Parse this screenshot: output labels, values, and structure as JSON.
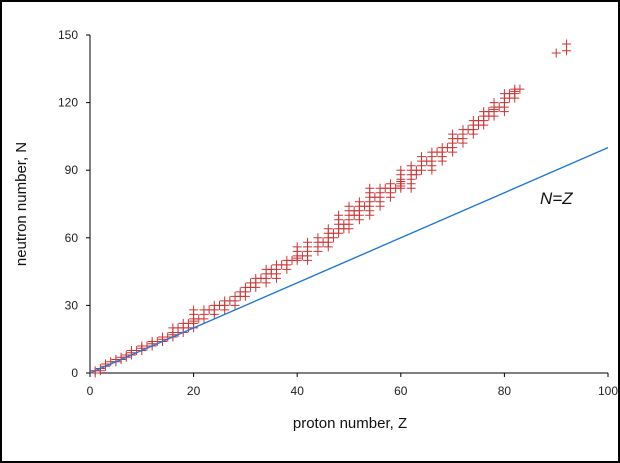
{
  "chart_data": {
    "type": "scatter",
    "xlabel": "proton number, Z",
    "ylabel": "neutron number, N",
    "xlim": [
      0,
      100
    ],
    "ylim": [
      0,
      150
    ],
    "xticks": [
      "0",
      "20",
      "40",
      "60",
      "80",
      "100"
    ],
    "yticks": [
      "0",
      "30",
      "60",
      "90",
      "120",
      "150"
    ],
    "grid": false,
    "annotation": "N=Z",
    "series": [
      {
        "kind": "marker-plus",
        "color": "#cc3333",
        "points": [
          [
            1,
            0
          ],
          [
            1,
            1
          ],
          [
            2,
            1
          ],
          [
            2,
            2
          ],
          [
            3,
            3
          ],
          [
            3,
            4
          ],
          [
            4,
            5
          ],
          [
            5,
            5
          ],
          [
            5,
            6
          ],
          [
            6,
            6
          ],
          [
            6,
            7
          ],
          [
            7,
            7
          ],
          [
            7,
            8
          ],
          [
            8,
            8
          ],
          [
            8,
            9
          ],
          [
            8,
            10
          ],
          [
            9,
            10
          ],
          [
            10,
            10
          ],
          [
            10,
            11
          ],
          [
            10,
            12
          ],
          [
            11,
            12
          ],
          [
            12,
            12
          ],
          [
            12,
            13
          ],
          [
            12,
            14
          ],
          [
            13,
            14
          ],
          [
            14,
            14
          ],
          [
            14,
            15
          ],
          [
            14,
            16
          ],
          [
            15,
            16
          ],
          [
            16,
            16
          ],
          [
            16,
            17
          ],
          [
            16,
            18
          ],
          [
            16,
            20
          ],
          [
            17,
            18
          ],
          [
            17,
            20
          ],
          [
            18,
            18
          ],
          [
            18,
            20
          ],
          [
            18,
            22
          ],
          [
            19,
            20
          ],
          [
            19,
            22
          ],
          [
            20,
            20
          ],
          [
            20,
            22
          ],
          [
            20,
            23
          ],
          [
            20,
            24
          ],
          [
            20,
            26
          ],
          [
            20,
            28
          ],
          [
            21,
            24
          ],
          [
            22,
            24
          ],
          [
            22,
            26
          ],
          [
            22,
            28
          ],
          [
            23,
            28
          ],
          [
            24,
            26
          ],
          [
            24,
            28
          ],
          [
            24,
            30
          ],
          [
            25,
            30
          ],
          [
            26,
            28
          ],
          [
            26,
            30
          ],
          [
            26,
            32
          ],
          [
            27,
            32
          ],
          [
            28,
            30
          ],
          [
            28,
            32
          ],
          [
            28,
            34
          ],
          [
            29,
            34
          ],
          [
            29,
            36
          ],
          [
            30,
            34
          ],
          [
            30,
            36
          ],
          [
            30,
            38
          ],
          [
            31,
            38
          ],
          [
            31,
            40
          ],
          [
            32,
            38
          ],
          [
            32,
            40
          ],
          [
            32,
            42
          ],
          [
            33,
            42
          ],
          [
            34,
            40
          ],
          [
            34,
            42
          ],
          [
            34,
            44
          ],
          [
            34,
            46
          ],
          [
            35,
            44
          ],
          [
            35,
            46
          ],
          [
            36,
            42
          ],
          [
            36,
            44
          ],
          [
            36,
            46
          ],
          [
            36,
            48
          ],
          [
            37,
            48
          ],
          [
            38,
            46
          ],
          [
            38,
            48
          ],
          [
            38,
            50
          ],
          [
            39,
            50
          ],
          [
            40,
            50
          ],
          [
            40,
            51
          ],
          [
            40,
            52
          ],
          [
            40,
            54
          ],
          [
            40,
            56
          ],
          [
            41,
            52
          ],
          [
            42,
            50
          ],
          [
            42,
            52
          ],
          [
            42,
            54
          ],
          [
            42,
            56
          ],
          [
            42,
            58
          ],
          [
            44,
            54
          ],
          [
            44,
            56
          ],
          [
            44,
            58
          ],
          [
            44,
            60
          ],
          [
            45,
            58
          ],
          [
            46,
            56
          ],
          [
            46,
            58
          ],
          [
            46,
            60
          ],
          [
            46,
            62
          ],
          [
            46,
            64
          ],
          [
            47,
            60
          ],
          [
            47,
            62
          ],
          [
            48,
            62
          ],
          [
            48,
            64
          ],
          [
            48,
            66
          ],
          [
            48,
            68
          ],
          [
            48,
            70
          ],
          [
            49,
            64
          ],
          [
            49,
            66
          ],
          [
            50,
            64
          ],
          [
            50,
            66
          ],
          [
            50,
            68
          ],
          [
            50,
            70
          ],
          [
            50,
            72
          ],
          [
            50,
            74
          ],
          [
            51,
            70
          ],
          [
            51,
            72
          ],
          [
            52,
            68
          ],
          [
            52,
            70
          ],
          [
            52,
            72
          ],
          [
            52,
            74
          ],
          [
            52,
            76
          ],
          [
            53,
            74
          ],
          [
            54,
            70
          ],
          [
            54,
            72
          ],
          [
            54,
            74
          ],
          [
            54,
            76
          ],
          [
            54,
            78
          ],
          [
            54,
            80
          ],
          [
            54,
            82
          ],
          [
            55,
            78
          ],
          [
            56,
            74
          ],
          [
            56,
            76
          ],
          [
            56,
            78
          ],
          [
            56,
            80
          ],
          [
            56,
            82
          ],
          [
            57,
            82
          ],
          [
            58,
            78
          ],
          [
            58,
            80
          ],
          [
            58,
            82
          ],
          [
            58,
            84
          ],
          [
            59,
            82
          ],
          [
            60,
            82
          ],
          [
            60,
            83
          ],
          [
            60,
            84
          ],
          [
            60,
            85
          ],
          [
            60,
            86
          ],
          [
            60,
            88
          ],
          [
            60,
            90
          ],
          [
            62,
            82
          ],
          [
            62,
            84
          ],
          [
            62,
            86
          ],
          [
            62,
            88
          ],
          [
            62,
            90
          ],
          [
            62,
            92
          ],
          [
            63,
            88
          ],
          [
            63,
            90
          ],
          [
            64,
            90
          ],
          [
            64,
            92
          ],
          [
            64,
            94
          ],
          [
            64,
            96
          ],
          [
            65,
            94
          ],
          [
            66,
            90
          ],
          [
            66,
            92
          ],
          [
            66,
            94
          ],
          [
            66,
            96
          ],
          [
            66,
            98
          ],
          [
            67,
            98
          ],
          [
            68,
            94
          ],
          [
            68,
            96
          ],
          [
            68,
            98
          ],
          [
            68,
            100
          ],
          [
            69,
            100
          ],
          [
            70,
            98
          ],
          [
            70,
            100
          ],
          [
            70,
            102
          ],
          [
            70,
            104
          ],
          [
            70,
            106
          ],
          [
            71,
            104
          ],
          [
            72,
            102
          ],
          [
            72,
            104
          ],
          [
            72,
            106
          ],
          [
            72,
            108
          ],
          [
            73,
            108
          ],
          [
            74,
            106
          ],
          [
            74,
            108
          ],
          [
            74,
            110
          ],
          [
            74,
            112
          ],
          [
            75,
            110
          ],
          [
            75,
            112
          ],
          [
            76,
            110
          ],
          [
            76,
            112
          ],
          [
            76,
            114
          ],
          [
            76,
            116
          ],
          [
            77,
            114
          ],
          [
            77,
            116
          ],
          [
            78,
            114
          ],
          [
            78,
            116
          ],
          [
            78,
            117
          ],
          [
            78,
            118
          ],
          [
            78,
            120
          ],
          [
            79,
            118
          ],
          [
            80,
            116
          ],
          [
            80,
            118
          ],
          [
            80,
            120
          ],
          [
            80,
            122
          ],
          [
            80,
            124
          ],
          [
            81,
            122
          ],
          [
            81,
            124
          ],
          [
            82,
            122
          ],
          [
            82,
            124
          ],
          [
            82,
            125
          ],
          [
            82,
            126
          ],
          [
            83,
            126
          ],
          [
            90,
            142
          ],
          [
            92,
            143
          ],
          [
            92,
            146
          ]
        ]
      },
      {
        "kind": "line",
        "color": "#1f78d8",
        "points": [
          [
            0,
            0
          ],
          [
            100,
            100
          ]
        ]
      }
    ]
  }
}
